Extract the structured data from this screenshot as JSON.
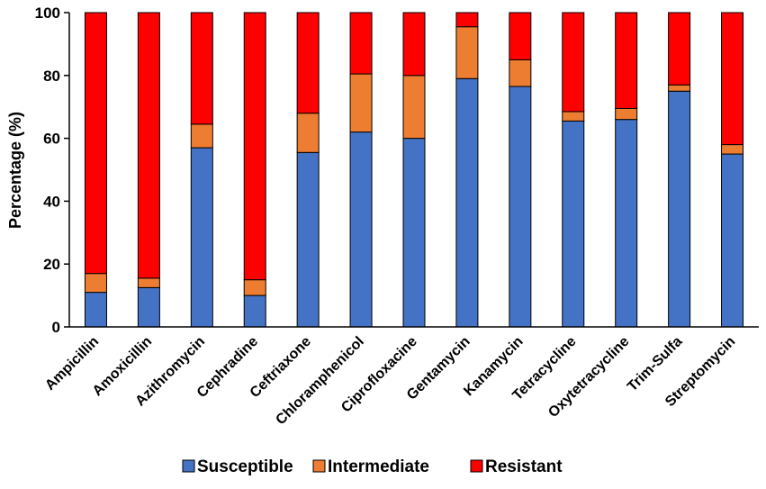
{
  "chart_data": {
    "type": "bar",
    "stacked": true,
    "title": "",
    "xlabel": "",
    "ylabel": "Percentage (%)",
    "ylim": [
      0,
      100
    ],
    "yticks": [
      0,
      20,
      40,
      60,
      80,
      100
    ],
    "grid": false,
    "legend_position": "bottom",
    "categories": [
      "Ampicillin",
      "Amoxicillin",
      "Azithromycin",
      "Cephradine",
      "Ceftriaxone",
      "Chloramphenicol",
      "Ciprofloxacine",
      "Gentamycin",
      "Kanamycin",
      "Tetracycline",
      "Oxytetracycline",
      "Trim-Sulfa",
      "Streptomycin"
    ],
    "series": [
      {
        "name": "Susceptible",
        "color": "#4472C4",
        "values": [
          11,
          12.5,
          57,
          10,
          55.5,
          62,
          60,
          79,
          76.5,
          65.5,
          66,
          75,
          55
        ]
      },
      {
        "name": "Intermediate",
        "color": "#ED7D31",
        "values": [
          6,
          3,
          7.5,
          5,
          12.5,
          18.5,
          20,
          16.5,
          8.5,
          3,
          3.5,
          2,
          3
        ]
      },
      {
        "name": "Resistant",
        "color": "#FF0000",
        "values": [
          83,
          84.5,
          35.5,
          85,
          32,
          19.5,
          20,
          4.5,
          15,
          31.5,
          30.5,
          23,
          42
        ]
      }
    ]
  }
}
